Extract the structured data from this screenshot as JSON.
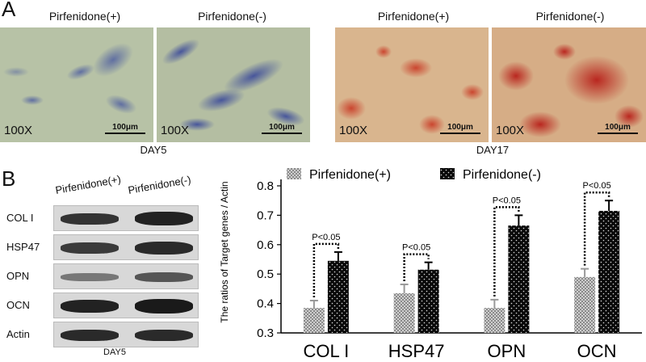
{
  "panel_a": {
    "letter": "A",
    "labels": [
      "Pirfenidone(+)",
      "Pirfenidone(-)",
      "Pirfenidone(+)",
      "Pirfenidone(-)"
    ],
    "magnification": "100X",
    "scale_bar": "100μm",
    "day_left": "DAY5",
    "day_right": "DAY17"
  },
  "panel_b": {
    "letter": "B",
    "lane_labels": [
      "Pirfenidone(+)",
      "Pirfenidone(-)"
    ],
    "blot_rows": [
      "COL I",
      "HSP47",
      "OPN",
      "OCN",
      "Actin"
    ],
    "day": "DAY5"
  },
  "chart_data": {
    "type": "bar",
    "categories": [
      "COL I",
      "HSP47",
      "OPN",
      "OCN"
    ],
    "series": [
      {
        "name": "Pirfenidone(+)",
        "values": [
          0.385,
          0.435,
          0.385,
          0.49
        ],
        "errors": [
          0.025,
          0.03,
          0.028,
          0.028
        ],
        "pattern": "grey-check"
      },
      {
        "name": "Pirfenidone(-)",
        "values": [
          0.545,
          0.515,
          0.665,
          0.715
        ],
        "errors": [
          0.03,
          0.025,
          0.035,
          0.035
        ],
        "pattern": "black-dots"
      }
    ],
    "ylabel": "The ratios of Target genes / Actin",
    "ylim": [
      0.3,
      0.8
    ],
    "yticks": [
      0.3,
      0.4,
      0.5,
      0.6,
      0.7,
      0.8
    ],
    "significance": [
      "P<0.05",
      "P<0.05",
      "P<0.05",
      "P<0.05"
    ]
  }
}
